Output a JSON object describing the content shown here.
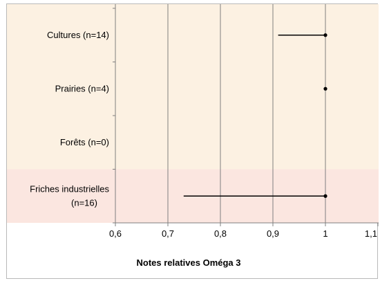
{
  "chart_data": {
    "type": "range-dot",
    "xlabel": "Notes relatives Oméga 3",
    "xlim": [
      0.6,
      1.1
    ],
    "xticks": [
      0.6,
      0.7,
      0.8,
      0.9,
      1.0,
      1.1
    ],
    "xtick_labels": [
      "0,6",
      "0,7",
      "0,8",
      "0,9",
      "1",
      "1,1"
    ],
    "grid": "vertical",
    "categories": [
      {
        "label_lines": [
          "Cultures (n=14)"
        ],
        "min": 0.91,
        "point": 1.0,
        "has_data": true,
        "band": "beige"
      },
      {
        "label_lines": [
          "Prairies (n=4)"
        ],
        "min": 1.0,
        "point": 1.0,
        "has_data": true,
        "band": "beige"
      },
      {
        "label_lines": [
          "Forêts (n=0)"
        ],
        "min": null,
        "point": null,
        "has_data": false,
        "band": "beige"
      },
      {
        "label_lines": [
          "Friches industrielles",
          "(n=16)"
        ],
        "min": 0.73,
        "point": 1.0,
        "has_data": true,
        "band": "pink"
      }
    ],
    "colors": {
      "band_beige": "#fcf1e2",
      "band_pink": "#fbe6e0",
      "gridline": "#7f7f7f",
      "range_line": "#000000",
      "point": "#000000"
    }
  }
}
